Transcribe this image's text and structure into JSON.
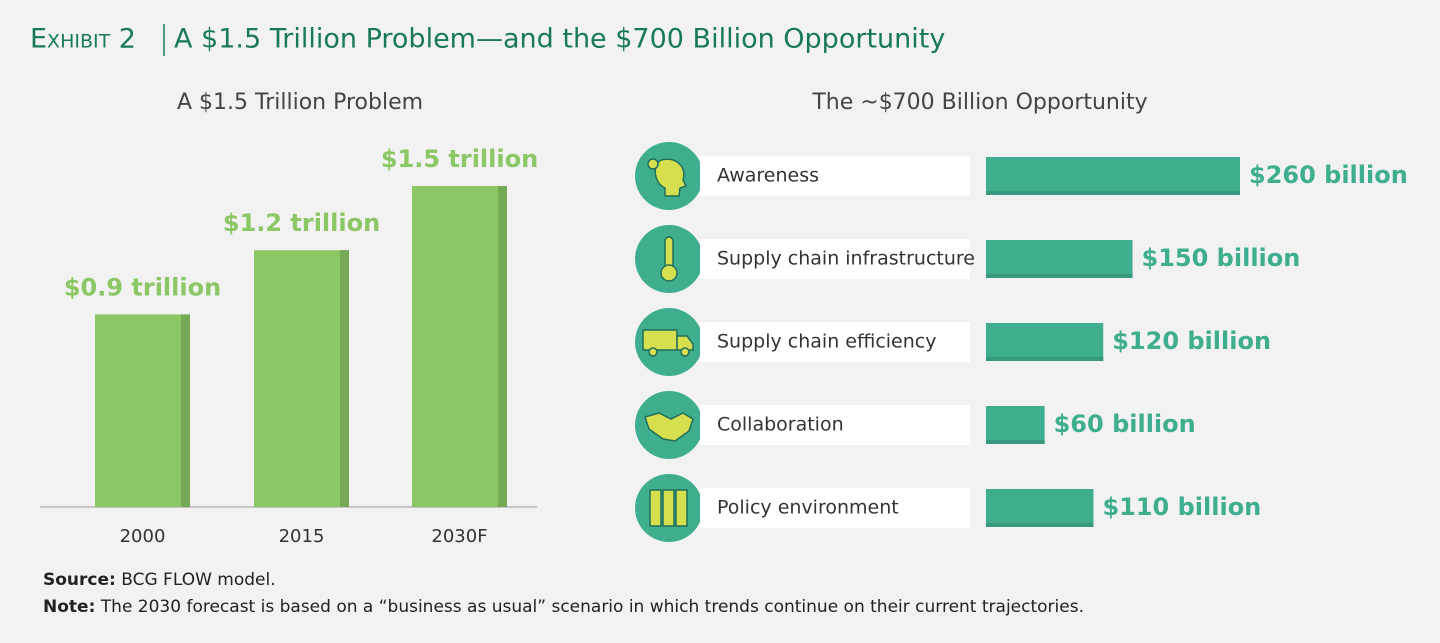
{
  "exhibit": "Exhibit 2",
  "title": "A $1.5 Trillion Problem—and the $700 Billion Opportunity",
  "chart_data": [
    {
      "type": "bar",
      "title": "A $1.5 Trillion Problem",
      "categories": [
        "2000",
        "2015",
        "2030F"
      ],
      "values": [
        0.9,
        1.2,
        1.5
      ],
      "value_labels": [
        "$0.9 trillion",
        "$1.2 trillion",
        "$1.5 trillion"
      ],
      "color": "#8bc764"
    },
    {
      "type": "bar",
      "orientation": "horizontal",
      "title": "The ~$700 Billion Opportunity",
      "categories": [
        "Awareness",
        "Supply chain infrastructure",
        "Supply chain efficiency",
        "Collaboration",
        "Policy environment"
      ],
      "values": [
        260,
        150,
        120,
        60,
        110
      ],
      "value_labels": [
        "$260 billion",
        "$150 billion",
        "$120 billion",
        "$60 billion",
        "$110 billion"
      ],
      "color": "#3fae8f"
    }
  ],
  "source": {
    "label": "Source:",
    "text": "BCG FLOW model."
  },
  "note": {
    "label": "Note:",
    "text": "The 2030 forecast is based on a “business as usual” scenario in which trends continue on their current trajectories."
  }
}
